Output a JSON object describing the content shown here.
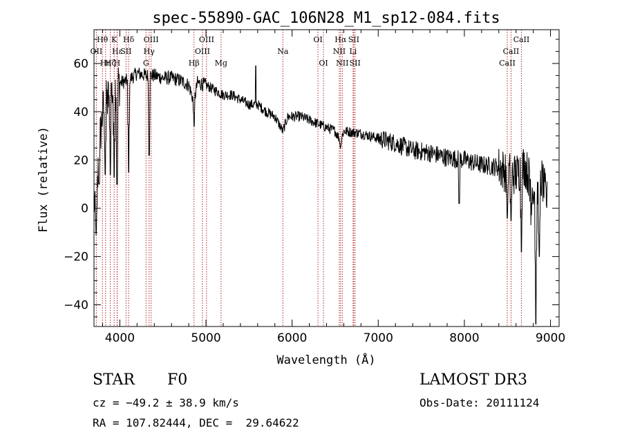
{
  "chart_data": {
    "type": "line",
    "title": "spec-55890-GAC_106N28_M1_sp12-084.fits",
    "xlabel": "Wavelength (Å)",
    "ylabel": "Flux (relative)",
    "xlim": [
      3700,
      9100
    ],
    "ylim": [
      -49,
      74
    ],
    "xticks": [
      4000,
      5000,
      6000,
      7000,
      8000,
      9000
    ],
    "yticks": [
      -40,
      -20,
      0,
      20,
      40,
      60
    ],
    "continuum_anchors": [
      [
        3700,
        5
      ],
      [
        3720,
        -8
      ],
      [
        3760,
        25
      ],
      [
        3800,
        40
      ],
      [
        3850,
        44
      ],
      [
        3900,
        48
      ],
      [
        4000,
        52
      ],
      [
        4100,
        53
      ],
      [
        4200,
        56
      ],
      [
        4300,
        55
      ],
      [
        4400,
        55
      ],
      [
        4500,
        54
      ],
      [
        4600,
        54
      ],
      [
        4700,
        53
      ],
      [
        4800,
        51
      ],
      [
        4861,
        44
      ],
      [
        4900,
        52
      ],
      [
        5000,
        51
      ],
      [
        5100,
        49
      ],
      [
        5200,
        47
      ],
      [
        5300,
        47
      ],
      [
        5400,
        45
      ],
      [
        5500,
        43
      ],
      [
        5600,
        43
      ],
      [
        5700,
        40
      ],
      [
        5800,
        38
      ],
      [
        5893,
        32
      ],
      [
        5950,
        38
      ],
      [
        6100,
        38
      ],
      [
        6300,
        35
      ],
      [
        6500,
        32
      ],
      [
        6563,
        28
      ],
      [
        6600,
        32
      ],
      [
        6800,
        31
      ],
      [
        7000,
        29
      ],
      [
        7200,
        27
      ],
      [
        7400,
        24
      ],
      [
        7600,
        23
      ],
      [
        7800,
        21
      ],
      [
        8000,
        20
      ],
      [
        8200,
        18
      ],
      [
        8400,
        17
      ],
      [
        8500,
        15
      ],
      [
        8600,
        14
      ],
      [
        8700,
        18
      ],
      [
        8800,
        8
      ],
      [
        8850,
        5
      ],
      [
        8900,
        12
      ],
      [
        8960,
        3
      ]
    ],
    "absorption_dips": [
      [
        3727,
        -9
      ],
      [
        3760,
        10
      ],
      [
        3830,
        14
      ],
      [
        3889,
        14
      ],
      [
        3934,
        13
      ],
      [
        3968,
        10
      ],
      [
        4102,
        15
      ],
      [
        4340,
        22
      ],
      [
        4861,
        34
      ],
      [
        5893,
        33
      ],
      [
        6563,
        25
      ],
      [
        7940,
        2
      ],
      [
        8498,
        -4
      ],
      [
        8542,
        -5
      ],
      [
        8662,
        -18
      ],
      [
        8770,
        -7
      ],
      [
        8830,
        -48
      ],
      [
        8870,
        -20
      ]
    ],
    "emission_spikes": [
      [
        5577,
        59
      ],
      [
        8765,
        12
      ]
    ],
    "line_markers": [
      {
        "label": "OII",
        "wavelength": 3727,
        "row": 2
      },
      {
        "label": "Hθ",
        "wavelength": 3798,
        "row": 1
      },
      {
        "label": "Hη",
        "wavelength": 3835,
        "row": 3
      },
      {
        "label": "Hζ",
        "wavelength": 3889,
        "row": 3
      },
      {
        "label": "K",
        "wavelength": 3934,
        "row": 1
      },
      {
        "label": "Hε",
        "wavelength": 3970,
        "row": 2
      },
      {
        "label": "H",
        "wavelength": 3968,
        "row": 3
      },
      {
        "label": "Hδ",
        "wavelength": 4102,
        "row": 1
      },
      {
        "label": "SII",
        "wavelength": 4072,
        "row": 2
      },
      {
        "label": "OIII",
        "wavelength": 4363,
        "row": 1
      },
      {
        "label": "Hγ",
        "wavelength": 4340,
        "row": 2
      },
      {
        "label": "G",
        "wavelength": 4304,
        "row": 3
      },
      {
        "label": "Hβ",
        "wavelength": 4861,
        "row": 3
      },
      {
        "label": "OIII",
        "wavelength": 5007,
        "row": 1
      },
      {
        "label": "OIII",
        "wavelength": 4959,
        "row": 2
      },
      {
        "label": "Mg",
        "wavelength": 5175,
        "row": 3
      },
      {
        "label": "Na",
        "wavelength": 5893,
        "row": 2
      },
      {
        "label": "OI",
        "wavelength": 6300,
        "row": 1
      },
      {
        "label": "OI",
        "wavelength": 6364,
        "row": 3
      },
      {
        "label": "Hα",
        "wavelength": 6563,
        "row": 1
      },
      {
        "label": "SII",
        "wavelength": 6716,
        "row": 1
      },
      {
        "label": "NII",
        "wavelength": 6548,
        "row": 2
      },
      {
        "label": "Li",
        "wavelength": 6708,
        "row": 2
      },
      {
        "label": "NII",
        "wavelength": 6583,
        "row": 3
      },
      {
        "label": "SII",
        "wavelength": 6731,
        "row": 3
      },
      {
        "label": "CaII",
        "wavelength": 8662,
        "row": 1
      },
      {
        "label": "CaII",
        "wavelength": 8542,
        "row": 2
      },
      {
        "label": "CaII",
        "wavelength": 8498,
        "row": 3
      }
    ]
  },
  "info": {
    "class": "STAR",
    "subclass": "F0",
    "survey": "LAMOST DR3",
    "redshift": "cz = −49.2 ± 38.9 km/s",
    "obs_date": "Obs-Date: 20111124",
    "coords": "RA = 107.82444, DEC =  29.64622"
  },
  "colors": {
    "marker": "#b22222",
    "spectrum": "#000000"
  }
}
